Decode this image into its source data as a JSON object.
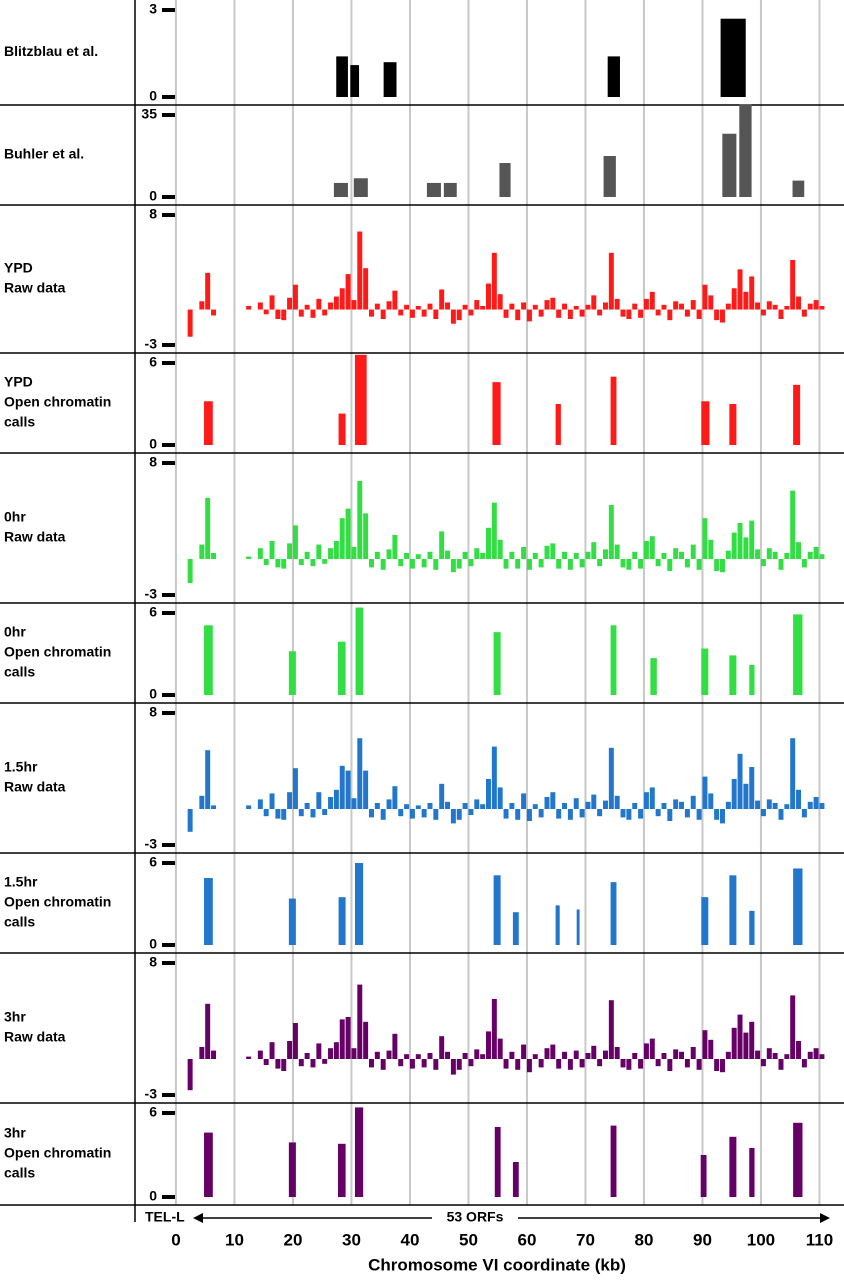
{
  "chart_data": [
    {
      "type": "interval",
      "title": [
        "Blitzblau et al."
      ],
      "color": "#000000",
      "ylim": [
        0,
        3
      ],
      "yticks": [
        0,
        3
      ],
      "x_start": [
        27.4,
        29.8,
        35.5,
        73.8,
        93.1
      ],
      "x_end": [
        29.4,
        31.3,
        37.7,
        75.9,
        97.4
      ],
      "values": [
        1.4,
        1.1,
        1.2,
        1.4,
        2.7
      ]
    },
    {
      "type": "interval",
      "title": [
        "Buhler et al."
      ],
      "color": "#555555",
      "ylim": [
        0,
        35
      ],
      "yticks": [
        0,
        35
      ],
      "x_start": [
        27,
        30.4,
        42.9,
        45.8,
        55.3,
        73.1,
        93.4,
        96.3,
        105.4
      ],
      "x_end": [
        29.4,
        32.8,
        45.3,
        48,
        57.2,
        75.2,
        95.8,
        98.4,
        107.4
      ],
      "values": [
        6,
        8,
        6,
        6,
        14.5,
        17.5,
        27,
        39.5,
        7
      ]
    },
    {
      "type": "histogram",
      "title": [
        "YPD",
        "Raw data"
      ],
      "color": "#ff1a1a",
      "ylim": [
        -3,
        8
      ],
      "yticks": [
        -3,
        8
      ],
      "bins": [
        2,
        3,
        4,
        5,
        6,
        7,
        8,
        9,
        10,
        11,
        12,
        13,
        14,
        15,
        16,
        17,
        18,
        19,
        20,
        21,
        22,
        23,
        24,
        25,
        26,
        27,
        28,
        29,
        30,
        31,
        32,
        33,
        34,
        35,
        36,
        37,
        38,
        39,
        40,
        41,
        42,
        43,
        44,
        45,
        46,
        47,
        48,
        49,
        50,
        51,
        52,
        53,
        54,
        55,
        56,
        57,
        58,
        59,
        60,
        61,
        62,
        63,
        64,
        65,
        66,
        67,
        68,
        69,
        70,
        71,
        72,
        73,
        74,
        75,
        76,
        77,
        78,
        79,
        80,
        81,
        82,
        83,
        84,
        85,
        86,
        87,
        88,
        89,
        90,
        91,
        92,
        93,
        94,
        95,
        96,
        97,
        98,
        99,
        100,
        101,
        102,
        103,
        104,
        105,
        106,
        107,
        108,
        109,
        110,
        111
      ],
      "values": [
        -2.3,
        null,
        0.7,
        3.1,
        -0.5,
        null,
        null,
        null,
        null,
        null,
        0.3,
        null,
        0.6,
        -0.4,
        1.2,
        -0.8,
        -0.9,
        1.0,
        2.1,
        -0.6,
        0.4,
        -0.7,
        0.9,
        -0.5,
        0.6,
        1.1,
        1.8,
        3.0,
        0.8,
        6.6,
        3.5,
        -0.6,
        0.5,
        -0.8,
        0.7,
        1.6,
        -0.5,
        0.4,
        -0.7,
        0.3,
        -0.6,
        0.5,
        -0.8,
        1.7,
        0.6,
        -1.2,
        -0.9,
        0.4,
        -0.5,
        0.8,
        0.3,
        2.2,
        4.8,
        1.3,
        -0.7,
        0.5,
        -0.9,
        0.6,
        -1.0,
        0.4,
        -0.6,
        0.8,
        1.0,
        -0.7,
        0.5,
        -0.8,
        0.3,
        -0.6,
        0.4,
        1.2,
        -0.5,
        0.6,
        4.8,
        0.9,
        -0.6,
        -0.8,
        0.5,
        -0.7,
        0.9,
        1.5,
        -0.5,
        0.4,
        -0.9,
        0.7,
        0.5,
        -0.6,
        0.8,
        -0.8,
        2.1,
        1.2,
        -0.9,
        -1.1,
        0.5,
        1.8,
        3.4,
        1.5,
        2.8,
        0.6,
        -0.5,
        0.7,
        0.4,
        -0.8,
        0.3,
        4.2,
        1.1,
        -0.6,
        0.5,
        0.8,
        0.3
      ]
    },
    {
      "type": "interval",
      "title": [
        "YPD",
        "Open chromatin",
        "calls"
      ],
      "color": "#ff1a1a",
      "ylim": [
        0,
        6
      ],
      "yticks": [
        0,
        6
      ],
      "x_start": [
        4.8,
        27.8,
        30.6,
        54.1,
        64.9,
        74.3,
        89.8,
        94.6,
        105.5
      ],
      "x_end": [
        6.3,
        29,
        32.6,
        55.5,
        65.8,
        75.3,
        91.2,
        95.8,
        106.7
      ],
      "values": [
        3.2,
        2.3,
        6.6,
        4.6,
        3,
        5,
        3.2,
        3,
        4.4
      ]
    },
    {
      "type": "histogram",
      "title": [
        "0hr",
        "Raw data"
      ],
      "color": "#33dd44",
      "ylim": [
        -3,
        8
      ],
      "yticks": [
        -3,
        8
      ],
      "bins": [
        2,
        3,
        4,
        5,
        6,
        7,
        8,
        9,
        10,
        11,
        12,
        13,
        14,
        15,
        16,
        17,
        18,
        19,
        20,
        21,
        22,
        23,
        24,
        25,
        26,
        27,
        28,
        29,
        30,
        31,
        32,
        33,
        34,
        35,
        36,
        37,
        38,
        39,
        40,
        41,
        42,
        43,
        44,
        45,
        46,
        47,
        48,
        49,
        50,
        51,
        52,
        53,
        54,
        55,
        56,
        57,
        58,
        59,
        60,
        61,
        62,
        63,
        64,
        65,
        66,
        67,
        68,
        69,
        70,
        71,
        72,
        73,
        74,
        75,
        76,
        77,
        78,
        79,
        80,
        81,
        82,
        83,
        84,
        85,
        86,
        87,
        88,
        89,
        90,
        91,
        92,
        93,
        94,
        95,
        96,
        97,
        98,
        99,
        100,
        101,
        102,
        103,
        104,
        105,
        106,
        107,
        108,
        109,
        110,
        111
      ],
      "values": [
        -2.0,
        null,
        1.2,
        5.1,
        0.5,
        null,
        null,
        null,
        null,
        null,
        0.2,
        null,
        0.9,
        -0.5,
        1.5,
        -0.7,
        -0.8,
        1.3,
        2.8,
        -0.5,
        0.6,
        -0.6,
        1.2,
        -0.4,
        0.9,
        1.5,
        3.4,
        4.2,
        1.0,
        6.5,
        3.8,
        -0.7,
        0.6,
        -0.9,
        0.8,
        2.0,
        -0.6,
        0.5,
        -0.8,
        0.4,
        -0.7,
        0.6,
        -0.9,
        2.3,
        0.7,
        -1.1,
        -0.8,
        0.6,
        -0.6,
        0.9,
        0.5,
        2.6,
        4.7,
        1.6,
        -0.8,
        0.6,
        -0.8,
        1.0,
        -0.9,
        0.5,
        -0.7,
        1.1,
        1.3,
        -0.8,
        0.6,
        -0.9,
        0.5,
        -0.7,
        0.6,
        1.4,
        -0.6,
        0.8,
        4.5,
        1.2,
        -0.7,
        -0.9,
        0.6,
        -0.8,
        1.5,
        1.9,
        -0.6,
        0.5,
        -1.0,
        0.9,
        0.6,
        -0.7,
        1.2,
        -0.9,
        3.4,
        1.6,
        -1.0,
        -1.1,
        0.7,
        2.2,
        3.0,
        1.8,
        3.2,
        0.8,
        -0.6,
        0.9,
        0.6,
        -0.9,
        0.5,
        5.7,
        1.4,
        -0.7,
        0.6,
        1.0,
        0.4
      ]
    },
    {
      "type": "interval",
      "title": [
        "0hr",
        "Open chromatin",
        "calls"
      ],
      "color": "#33dd44",
      "ylim": [
        0,
        6
      ],
      "yticks": [
        0,
        6
      ],
      "x_start": [
        4.8,
        19.3,
        27.7,
        30.7,
        54.3,
        74.3,
        81.1,
        89.8,
        94.6,
        98,
        105.5
      ],
      "x_end": [
        6.3,
        20.5,
        29,
        32,
        55.5,
        75.3,
        82.2,
        91,
        95.8,
        98.9,
        107.1
      ],
      "values": [
        5.1,
        3.2,
        3.9,
        6.4,
        4.6,
        5.1,
        2.7,
        3.4,
        2.9,
        2.2,
        5.9
      ]
    },
    {
      "type": "histogram",
      "title": [
        "1.5hr",
        "Raw data"
      ],
      "color": "#2277cc",
      "ylim": [
        -3,
        8
      ],
      "yticks": [
        -3,
        8
      ],
      "bins": [
        2,
        3,
        4,
        5,
        6,
        7,
        8,
        9,
        10,
        11,
        12,
        13,
        14,
        15,
        16,
        17,
        18,
        19,
        20,
        21,
        22,
        23,
        24,
        25,
        26,
        27,
        28,
        29,
        30,
        31,
        32,
        33,
        34,
        35,
        36,
        37,
        38,
        39,
        40,
        41,
        42,
        43,
        44,
        45,
        46,
        47,
        48,
        49,
        50,
        51,
        52,
        53,
        54,
        55,
        56,
        57,
        58,
        59,
        60,
        61,
        62,
        63,
        64,
        65,
        66,
        67,
        68,
        69,
        70,
        71,
        72,
        73,
        74,
        75,
        76,
        77,
        78,
        79,
        80,
        81,
        82,
        83,
        84,
        85,
        86,
        87,
        88,
        89,
        90,
        91,
        92,
        93,
        94,
        95,
        96,
        97,
        98,
        99,
        100,
        101,
        102,
        103,
        104,
        105,
        106,
        107,
        108,
        109,
        110,
        111
      ],
      "values": [
        -1.9,
        null,
        1.1,
        4.9,
        0.3,
        null,
        null,
        null,
        null,
        null,
        0.3,
        null,
        0.8,
        -0.6,
        1.3,
        -0.8,
        -0.9,
        1.4,
        3.4,
        -0.6,
        0.5,
        -0.7,
        1.4,
        -0.5,
        1.0,
        1.6,
        3.6,
        3.2,
        0.9,
        5.9,
        3.2,
        -0.7,
        0.5,
        -0.9,
        0.8,
        1.9,
        -0.6,
        0.4,
        -0.8,
        0.3,
        -0.7,
        0.5,
        -0.9,
        2.1,
        0.6,
        -1.2,
        -0.9,
        0.5,
        -0.5,
        0.8,
        0.4,
        2.5,
        5.2,
        1.8,
        -0.8,
        0.5,
        -0.9,
        1.3,
        -1.0,
        0.4,
        -0.7,
        1.0,
        1.4,
        -0.8,
        0.5,
        -0.9,
        0.9,
        -0.7,
        0.6,
        1.2,
        -0.6,
        0.7,
        5.1,
        1.1,
        -0.7,
        -0.9,
        0.5,
        -0.8,
        1.4,
        1.8,
        -0.6,
        0.5,
        -1.0,
        0.8,
        0.6,
        -0.7,
        1.1,
        -0.9,
        2.7,
        1.3,
        -0.9,
        -1.2,
        0.6,
        2.5,
        4.6,
        2.1,
        3.5,
        0.7,
        -0.6,
        0.8,
        0.5,
        -0.9,
        0.4,
        5.9,
        1.6,
        -0.7,
        0.6,
        1.0,
        0.5
      ]
    },
    {
      "type": "interval",
      "title": [
        "1.5hr",
        "Open chromatin",
        "calls"
      ],
      "color": "#2277cc",
      "ylim": [
        0,
        6
      ],
      "yticks": [
        0,
        6
      ],
      "x_start": [
        4.8,
        19.3,
        27.8,
        30.6,
        54.3,
        57.6,
        64.9,
        68.5,
        74.3,
        89.8,
        94.6,
        98,
        105.5
      ],
      "x_end": [
        6.3,
        20.5,
        29,
        32,
        55.5,
        58.6,
        65.6,
        69,
        75.3,
        91,
        95.8,
        98.9,
        107.1
      ],
      "values": [
        4.9,
        3.4,
        3.5,
        6,
        5.1,
        2.4,
        2.9,
        2.6,
        4.6,
        3.5,
        5.1,
        2.5,
        5.6
      ]
    },
    {
      "type": "histogram",
      "title": [
        "3hr",
        "Raw data"
      ],
      "color": "#660066",
      "ylim": [
        -3,
        8
      ],
      "yticks": [
        -3,
        8
      ],
      "bins": [
        2,
        3,
        4,
        5,
        6,
        7,
        8,
        9,
        10,
        11,
        12,
        13,
        14,
        15,
        16,
        17,
        18,
        19,
        20,
        21,
        22,
        23,
        24,
        25,
        26,
        27,
        28,
        29,
        30,
        31,
        32,
        33,
        34,
        35,
        36,
        37,
        38,
        39,
        40,
        41,
        42,
        43,
        44,
        45,
        46,
        47,
        48,
        49,
        50,
        51,
        52,
        53,
        54,
        55,
        56,
        57,
        58,
        59,
        60,
        61,
        62,
        63,
        64,
        65,
        66,
        67,
        68,
        69,
        70,
        71,
        72,
        73,
        74,
        75,
        76,
        77,
        78,
        79,
        80,
        81,
        82,
        83,
        84,
        85,
        86,
        87,
        88,
        89,
        90,
        91,
        92,
        93,
        94,
        95,
        96,
        97,
        98,
        99,
        100,
        101,
        102,
        103,
        104,
        105,
        106,
        107,
        108,
        109,
        110,
        111
      ],
      "values": [
        -2.6,
        null,
        1.0,
        4.6,
        0.7,
        null,
        null,
        null,
        null,
        null,
        0.2,
        null,
        0.7,
        -0.5,
        1.4,
        -0.8,
        -1.0,
        1.5,
        3.0,
        -0.6,
        0.5,
        -0.7,
        1.3,
        -0.4,
        0.9,
        1.4,
        3.3,
        3.5,
        0.9,
        6.2,
        3.1,
        -0.7,
        0.6,
        -0.9,
        0.7,
        2.1,
        -0.6,
        0.4,
        -0.8,
        0.4,
        -0.7,
        0.5,
        -0.9,
        1.9,
        0.6,
        -1.3,
        -0.9,
        0.5,
        -0.6,
        0.8,
        0.4,
        2.3,
        5.0,
        1.7,
        -0.8,
        0.6,
        -0.9,
        1.2,
        -1.1,
        0.4,
        -0.7,
        0.9,
        1.2,
        -0.8,
        0.6,
        -0.9,
        0.7,
        -0.7,
        0.5,
        1.1,
        -0.6,
        0.7,
        4.9,
        1.0,
        -0.7,
        -0.9,
        0.5,
        -0.8,
        1.3,
        1.7,
        -0.6,
        0.5,
        -1.0,
        0.8,
        0.6,
        -0.7,
        1.0,
        -0.9,
        2.4,
        1.6,
        -1.0,
        -1.1,
        0.6,
        2.6,
        3.7,
        2.2,
        3.1,
        0.7,
        -0.6,
        0.9,
        0.5,
        -0.9,
        0.4,
        5.3,
        1.5,
        -0.7,
        0.6,
        0.9,
        0.4
      ]
    },
    {
      "type": "interval",
      "title": [
        "3hr",
        "Open chromatin",
        "calls"
      ],
      "color": "#660066",
      "ylim": [
        0,
        6
      ],
      "yticks": [
        0,
        6
      ],
      "x_start": [
        4.8,
        19.3,
        27.7,
        30.6,
        54.5,
        57.6,
        74.3,
        89.7,
        94.6,
        98,
        105.5
      ],
      "x_end": [
        6.3,
        20.5,
        29,
        32,
        55.5,
        58.6,
        75.3,
        90.7,
        95.8,
        98.9,
        107.1
      ],
      "values": [
        4.6,
        3.9,
        3.8,
        6.4,
        5,
        2.5,
        5.1,
        3,
        4.3,
        3.5,
        5.3
      ]
    }
  ],
  "x_axis": {
    "xlabel": "Chromosome VI coordinate (kb)",
    "left_label": "TEL-L",
    "center_label": "53 ORFs",
    "xlim": [
      -7,
      113
    ],
    "xticks": [
      0,
      10,
      20,
      30,
      40,
      50,
      60,
      70,
      80,
      90,
      100,
      110
    ],
    "grid": true
  }
}
